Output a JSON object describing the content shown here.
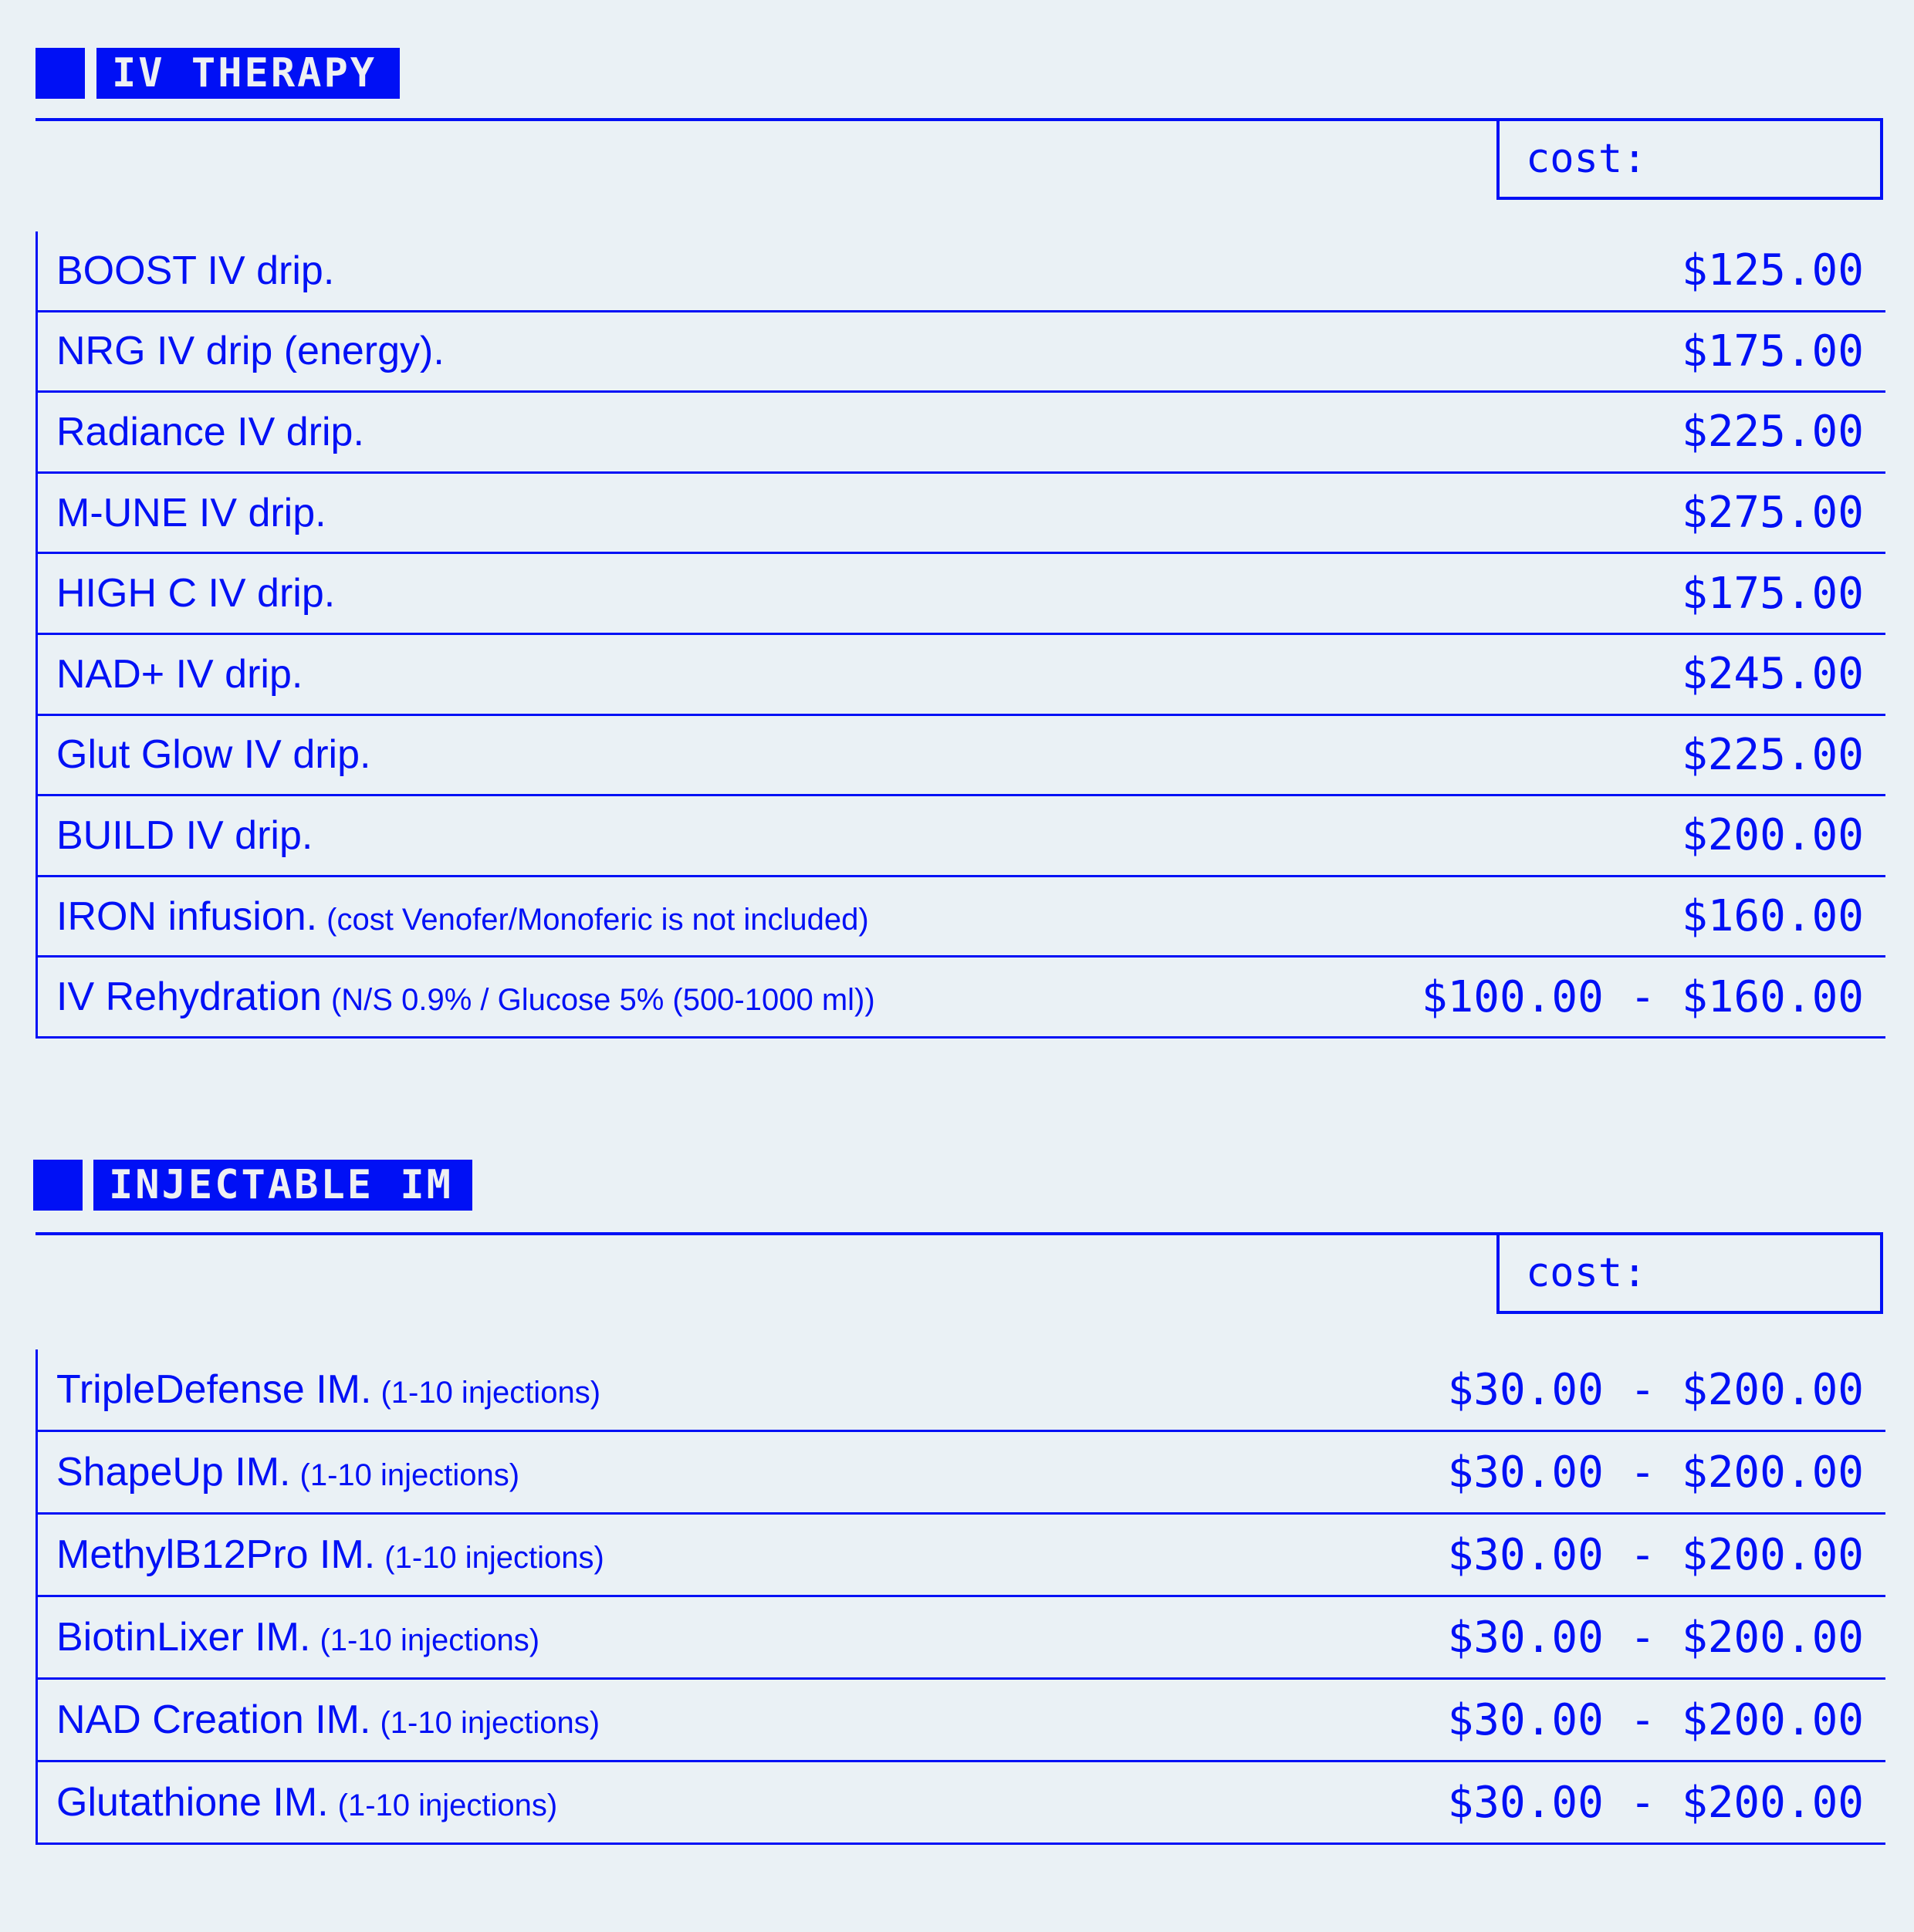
{
  "colors": {
    "accent": "#0010f5",
    "background": "#eaf1f5"
  },
  "sections": [
    {
      "title": "IV THERAPY",
      "cost_label": "cost:",
      "items": [
        {
          "name": "BOOST IV drip.",
          "note": "",
          "price": "$125.00"
        },
        {
          "name": "NRG IV drip (energy).",
          "note": "",
          "price": "$175.00"
        },
        {
          "name": "Radiance IV drip.",
          "note": "",
          "price": "$225.00"
        },
        {
          "name": "M-UNE IV drip.",
          "note": "",
          "price": "$275.00"
        },
        {
          "name": "HIGH C IV drip.",
          "note": "",
          "price": "$175.00"
        },
        {
          "name": "NAD+ IV drip.",
          "note": "",
          "price": "$245.00"
        },
        {
          "name": "Glut Glow IV drip.",
          "note": "",
          "price": "$225.00"
        },
        {
          "name": "BUILD IV drip.",
          "note": "",
          "price": "$200.00"
        },
        {
          "name": "IRON infusion.",
          "note": "(cost Venofer/Monoferic is not included)",
          "price": "$160.00"
        },
        {
          "name": "IV Rehydration",
          "note": "(N/S 0.9% / Glucose 5% (500-1000 ml))",
          "price": "$100.00 - $160.00"
        }
      ]
    },
    {
      "title": "INJECTABLE IM",
      "cost_label": "cost:",
      "items": [
        {
          "name": "TripleDefense IM.",
          "note": "(1-10 injections)",
          "price": "$30.00 - $200.00"
        },
        {
          "name": "ShapeUp IM.",
          "note": "(1-10 injections)",
          "price": "$30.00 - $200.00"
        },
        {
          "name": "MethylB12Pro IM.",
          "note": "(1-10 injections)",
          "price": "$30.00 - $200.00"
        },
        {
          "name": "BiotinLixer IM.",
          "note": "(1-10 injections)",
          "price": "$30.00 - $200.00"
        },
        {
          "name": "NAD Creation IM.",
          "note": "(1-10 injections)",
          "price": "$30.00 - $200.00"
        },
        {
          "name": "Glutathione IM.",
          "note": "(1-10 injections)",
          "price": "$30.00 - $200.00"
        }
      ]
    }
  ]
}
